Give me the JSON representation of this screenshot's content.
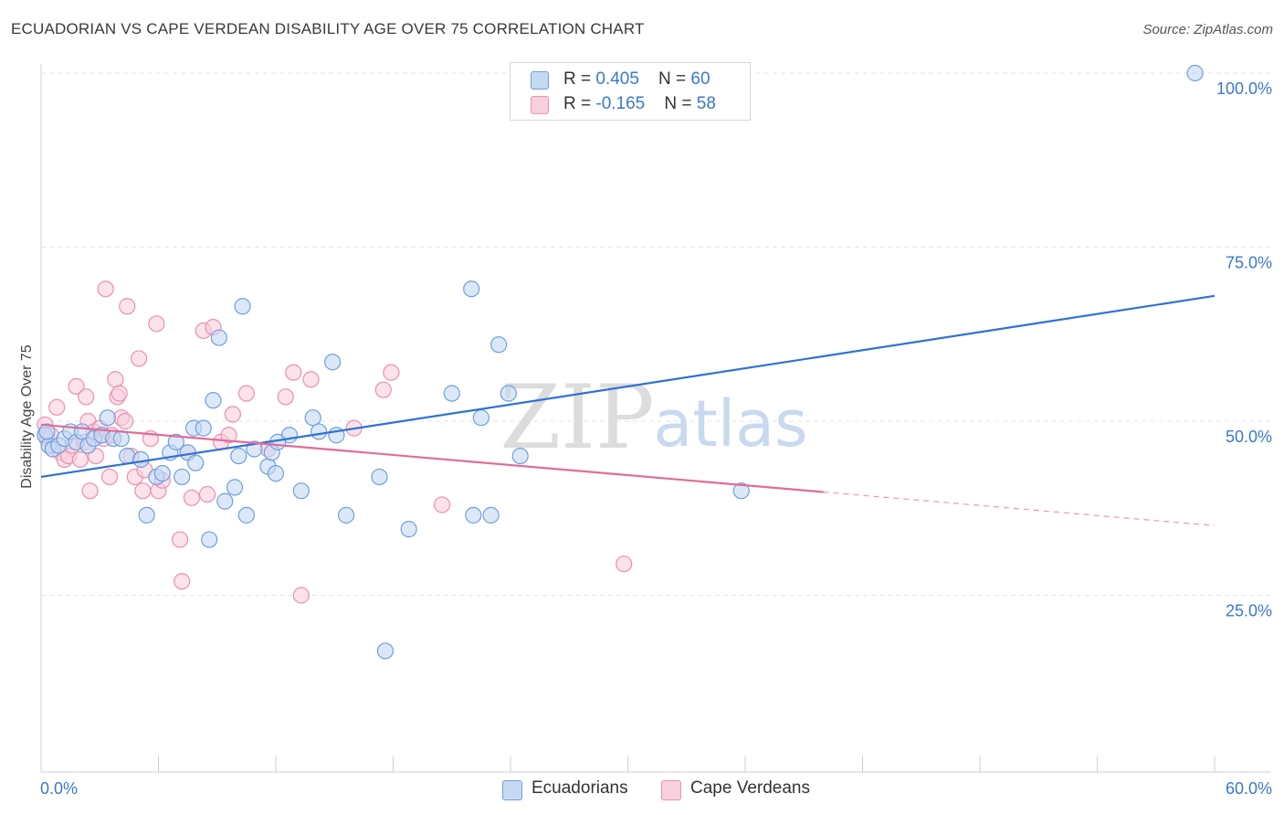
{
  "header": {
    "title": "ECUADORIAN VS CAPE VERDEAN DISABILITY AGE OVER 75 CORRELATION CHART",
    "source": "Source: ZipAtlas.com"
  },
  "watermark": {
    "zip": "ZIP",
    "atlas": "atlas"
  },
  "legend": {
    "rows": [
      {
        "r_label": "R = ",
        "r_value": "0.405",
        "n_label": "N = ",
        "n_value": "60"
      },
      {
        "r_label": "R = ",
        "r_value": "-0.165",
        "n_label": "N = ",
        "n_value": "58"
      }
    ]
  },
  "bottom_legend": {
    "series1": "Ecuadorians",
    "series2": "Cape Verdeans"
  },
  "colors": {
    "blue_fill": "#c5d9f3",
    "blue_stroke": "#6f9fe0",
    "blue_line": "#2f72d4",
    "pink_fill": "#f9cfdd",
    "pink_stroke": "#ec8fb0",
    "pink_line": "#e06c98",
    "grid": "#e3e3e3",
    "axis_label": "#3a78cf"
  },
  "chart_data": {
    "type": "scatter",
    "title": "ECUADORIAN VS CAPE VERDEAN DISABILITY AGE OVER 75 CORRELATION CHART",
    "xlabel": "",
    "ylabel": "Disability Age Over 75",
    "xlim": [
      0,
      60
    ],
    "ylim": [
      0,
      102
    ],
    "x_tick_labels": [
      "0.0%",
      "60.0%"
    ],
    "y_ticks": [
      25,
      50,
      75,
      100
    ],
    "y_tick_labels": [
      "25.0%",
      "50.0%",
      "75.0%",
      "100.0%"
    ],
    "grid": true,
    "series": [
      {
        "name": "Ecuadorians",
        "r": 0.405,
        "n": 60,
        "trend": {
          "x0": 0,
          "y0": 42.0,
          "x1": 60,
          "y1": 68.0,
          "dashed_from": null
        },
        "points": [
          [
            0.2,
            48.0
          ],
          [
            0.4,
            46.5
          ],
          [
            0.6,
            46.0
          ],
          [
            0.9,
            46.5
          ],
          [
            1.2,
            47.5
          ],
          [
            1.5,
            48.5
          ],
          [
            1.8,
            47.0
          ],
          [
            2.1,
            48.5
          ],
          [
            2.4,
            46.5
          ],
          [
            2.7,
            47.5
          ],
          [
            3.1,
            48.0
          ],
          [
            3.4,
            50.5
          ],
          [
            3.7,
            47.5
          ],
          [
            4.1,
            47.5
          ],
          [
            4.4,
            45.0
          ],
          [
            5.1,
            44.5
          ],
          [
            5.4,
            36.5
          ],
          [
            5.9,
            42.0
          ],
          [
            6.2,
            42.5
          ],
          [
            6.6,
            45.5
          ],
          [
            6.9,
            47.0
          ],
          [
            7.2,
            42.0
          ],
          [
            7.5,
            45.5
          ],
          [
            7.8,
            49.0
          ],
          [
            7.9,
            44.0
          ],
          [
            8.3,
            49.0
          ],
          [
            8.6,
            33.0
          ],
          [
            8.8,
            53.0
          ],
          [
            9.1,
            62.0
          ],
          [
            9.4,
            38.5
          ],
          [
            9.9,
            40.5
          ],
          [
            10.1,
            45.0
          ],
          [
            10.3,
            66.5
          ],
          [
            10.5,
            36.5
          ],
          [
            10.9,
            46.0
          ],
          [
            11.6,
            43.5
          ],
          [
            11.8,
            45.5
          ],
          [
            12.0,
            42.5
          ],
          [
            12.7,
            48.0
          ],
          [
            13.3,
            40.0
          ],
          [
            13.9,
            50.5
          ],
          [
            14.2,
            48.5
          ],
          [
            14.9,
            58.5
          ],
          [
            15.1,
            48.0
          ],
          [
            15.6,
            36.5
          ],
          [
            17.3,
            42.0
          ],
          [
            17.6,
            17.0
          ],
          [
            18.8,
            34.5
          ],
          [
            21.0,
            54.0
          ],
          [
            22.0,
            69.0
          ],
          [
            22.1,
            36.5
          ],
          [
            22.5,
            50.5
          ],
          [
            23.0,
            36.5
          ],
          [
            23.9,
            54.0
          ],
          [
            23.4,
            61.0
          ],
          [
            24.5,
            45.0
          ],
          [
            35.8,
            40.0
          ],
          [
            59.0,
            100.0
          ],
          [
            0.3,
            48.5
          ],
          [
            12.1,
            47.0
          ]
        ]
      },
      {
        "name": "Cape Verdeans",
        "r": -0.165,
        "n": 58,
        "trend": {
          "x0": 0,
          "y0": 49.5,
          "x1": 60,
          "y1": 35.0,
          "dashed_from": 40
        },
        "points": [
          [
            0.2,
            49.5
          ],
          [
            0.3,
            47.5
          ],
          [
            0.6,
            46.0
          ],
          [
            0.8,
            52.0
          ],
          [
            1.0,
            45.5
          ],
          [
            1.2,
            44.5
          ],
          [
            1.4,
            45.0
          ],
          [
            1.6,
            46.5
          ],
          [
            1.8,
            55.0
          ],
          [
            2.0,
            44.5
          ],
          [
            2.2,
            47.0
          ],
          [
            2.3,
            53.5
          ],
          [
            2.4,
            50.0
          ],
          [
            2.5,
            40.0
          ],
          [
            2.7,
            48.5
          ],
          [
            2.8,
            45.0
          ],
          [
            3.0,
            49.0
          ],
          [
            3.2,
            47.5
          ],
          [
            3.3,
            69.0
          ],
          [
            3.5,
            42.0
          ],
          [
            3.6,
            48.0
          ],
          [
            3.8,
            56.0
          ],
          [
            3.9,
            53.5
          ],
          [
            4.0,
            54.0
          ],
          [
            4.1,
            50.5
          ],
          [
            4.3,
            50.0
          ],
          [
            4.4,
            66.5
          ],
          [
            4.6,
            45.0
          ],
          [
            4.8,
            42.0
          ],
          [
            5.0,
            59.0
          ],
          [
            5.2,
            40.0
          ],
          [
            5.3,
            43.0
          ],
          [
            5.6,
            47.5
          ],
          [
            5.9,
            64.0
          ],
          [
            6.0,
            40.0
          ],
          [
            6.2,
            41.5
          ],
          [
            7.1,
            33.0
          ],
          [
            7.2,
            27.0
          ],
          [
            7.5,
            45.5
          ],
          [
            7.7,
            39.0
          ],
          [
            8.3,
            63.0
          ],
          [
            8.5,
            39.5
          ],
          [
            8.8,
            63.5
          ],
          [
            9.2,
            47.0
          ],
          [
            9.6,
            48.0
          ],
          [
            9.8,
            51.0
          ],
          [
            10.5,
            54.0
          ],
          [
            11.6,
            46.0
          ],
          [
            12.5,
            53.5
          ],
          [
            12.9,
            57.0
          ],
          [
            13.3,
            25.0
          ],
          [
            13.8,
            56.0
          ],
          [
            16.0,
            49.0
          ],
          [
            17.5,
            54.5
          ],
          [
            17.9,
            57.0
          ],
          [
            20.5,
            38.0
          ],
          [
            29.8,
            29.5
          ],
          [
            0.5,
            48.0
          ]
        ]
      }
    ]
  }
}
